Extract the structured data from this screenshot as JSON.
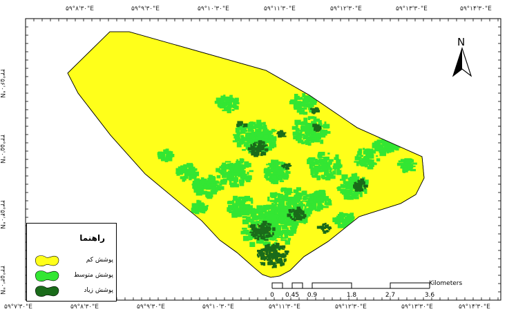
{
  "map": {
    "colors": {
      "low_cover": "#ffff1a",
      "medium_cover": "#33e633",
      "high_cover": "#1a6b1a",
      "frame": "#000000"
    },
    "top_labels": [
      "۵۹°۸'۳۰\"E",
      "۵۹°۹'۳۰\"E",
      "۵۹°۱۰'۳۰\"E",
      "۵۹°۱۱'۳۰\"E",
      "۵۹°۱۲'۳۰\"E",
      "۵۹°۱۳'۳۰\"E",
      "۵۹°۱۴'۳۰\"E"
    ],
    "bottom_labels": [
      "۵۹°۷'۳۰\"E",
      "۵۹°۸'۳۰\"E",
      "۵۹°۹'۳۰\"E",
      "۵۹°۱۰'۳۰\"E",
      "۵۹°۱۱'۳۰\"E",
      "۵۹°۱۲'۳۰\"E",
      "۵۹°۱۳'۳۰\"E",
      "۵۹°۱۴'۳۰\"E"
    ],
    "left_labels": [
      "۳۳°۵۶'۰\"N",
      "۳۳°۵۵'۰\"N",
      "۳۳°۵۴'۰\"N",
      "۳۳°۵۳'۰\"N"
    ],
    "north_label": "N",
    "legend": {
      "title": "راهنما",
      "items": [
        {
          "label": "پوشش کم",
          "color_key": "low_cover"
        },
        {
          "label": "پوشش متوسط",
          "color_key": "medium_cover"
        },
        {
          "label": "پوشش زیاد",
          "color_key": "high_cover"
        }
      ]
    },
    "scale": {
      "unit": "Kilometers",
      "ticks": [
        "0",
        "0.45",
        "0.9",
        "1.8",
        "2.7",
        "3.6"
      ]
    }
  }
}
